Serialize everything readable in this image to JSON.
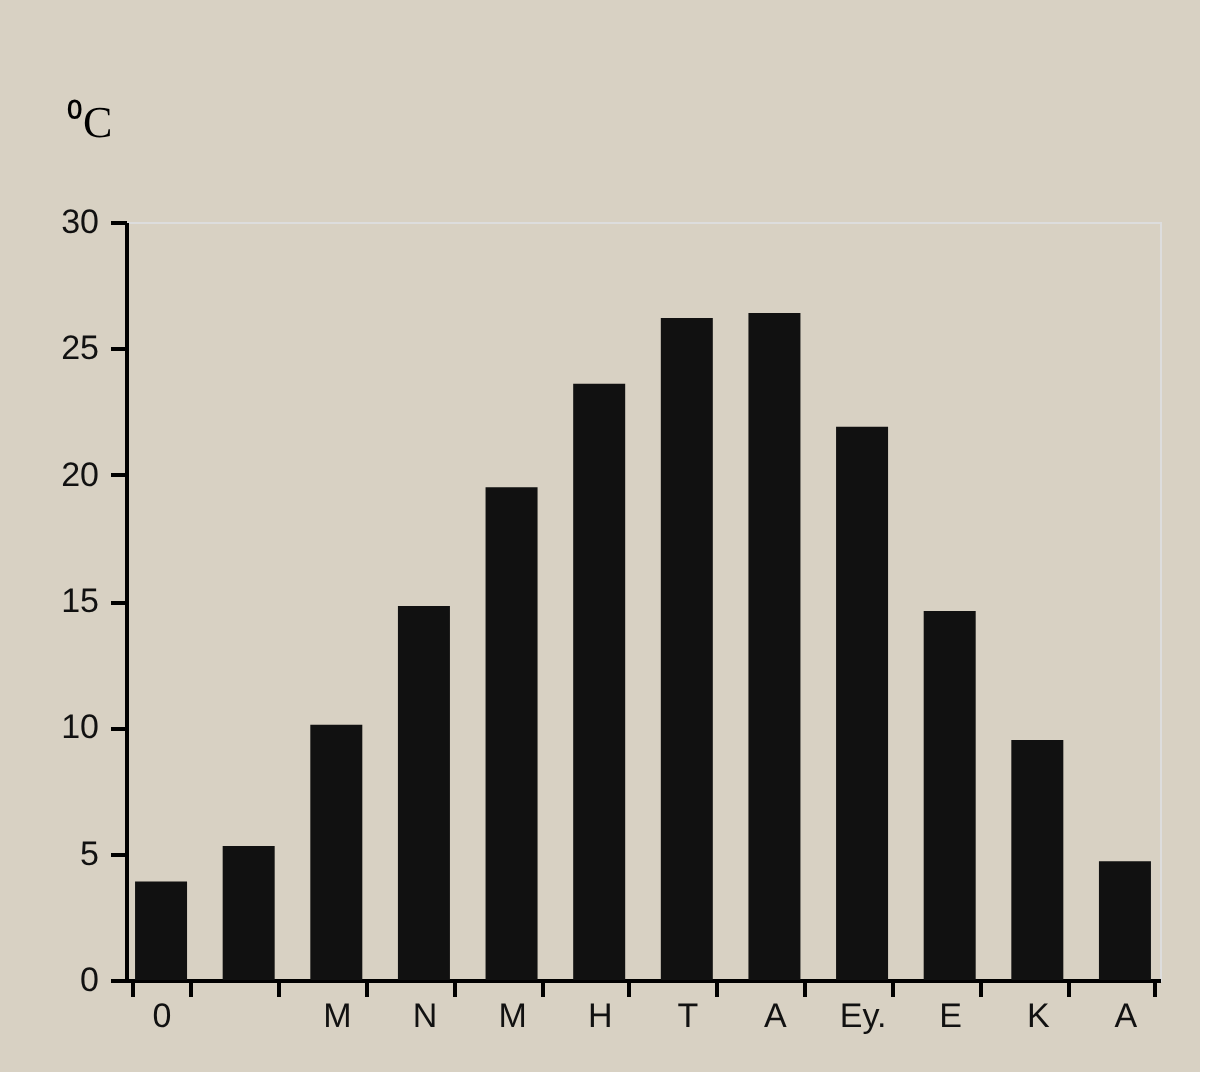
{
  "chart_data": {
    "type": "bar",
    "ylabel": "⁰C",
    "categories": [
      "0",
      null,
      "M",
      "N",
      "M",
      "H",
      "T",
      "A",
      "Ey.",
      "E",
      "K",
      "A"
    ],
    "values": [
      3.9,
      5.3,
      10.1,
      14.8,
      19.5,
      23.6,
      26.2,
      26.4,
      21.9,
      14.6,
      9.5,
      4.7
    ],
    "color": "#111111",
    "ylim": [
      0,
      30
    ],
    "yticks": [
      0,
      5,
      10,
      15,
      20,
      25,
      30
    ],
    "grid": false
  }
}
